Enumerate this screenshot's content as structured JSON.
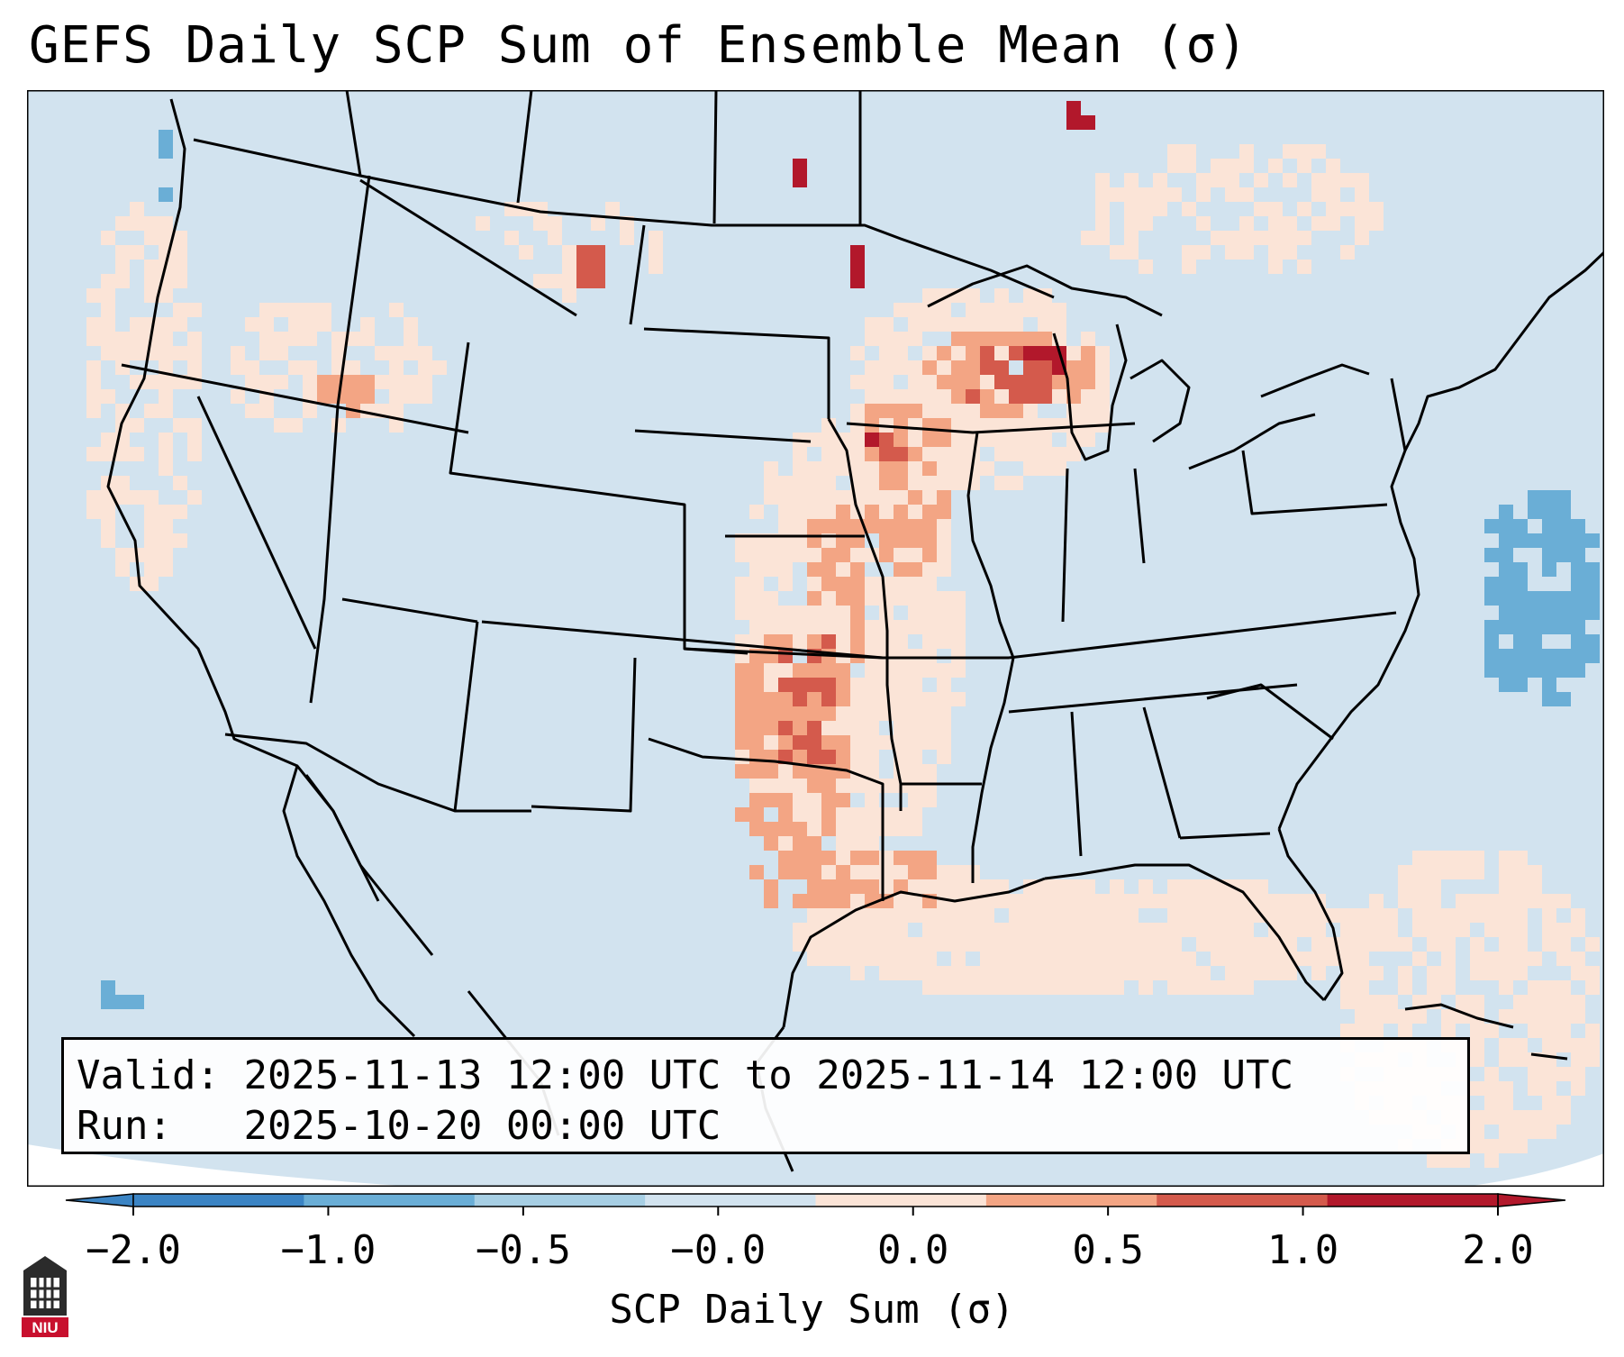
{
  "title": "GEFS Daily SCP Sum of Ensemble Mean (σ)",
  "info": {
    "valid_label": "Valid:",
    "valid_value": "2025-11-13 12:00 UTC to 2025-11-14 12:00 UTC",
    "run_label": "Run:",
    "run_value": "2025-10-20 00:00 UTC"
  },
  "colorbar": {
    "title": "SCP Daily Sum (σ)",
    "ticks": [
      "−2.0",
      "−1.0",
      "−0.5",
      "−0.0",
      "0.0",
      "0.5",
      "1.0",
      "2.0"
    ],
    "colors": [
      "#3b84c4",
      "#6aaed6",
      "#a7cfe4",
      "#d2e3ef",
      "#fbe4d7",
      "#f3a584",
      "#d45a4c",
      "#b2182b"
    ],
    "extend": "both"
  },
  "map": {
    "projection": "lambert-conformal-conus",
    "background_color": "#d2e3ef",
    "border_color": "#000000",
    "highlights": [
      {
        "region": "Oklahoma-Kansas-Texas corridor",
        "level": "0.5 to 2.0"
      },
      {
        "region": "Upper Midwest / Wisconsin-Michigan",
        "level": "1.0 to 2.0"
      },
      {
        "region": "Gulf Coast",
        "level": "0.0 to 1.0"
      },
      {
        "region": "Western Atlantic off Carolinas",
        "level": "-1.0 to -0.5"
      }
    ]
  },
  "logo": {
    "text": "NIU",
    "color": "#c8102e"
  }
}
